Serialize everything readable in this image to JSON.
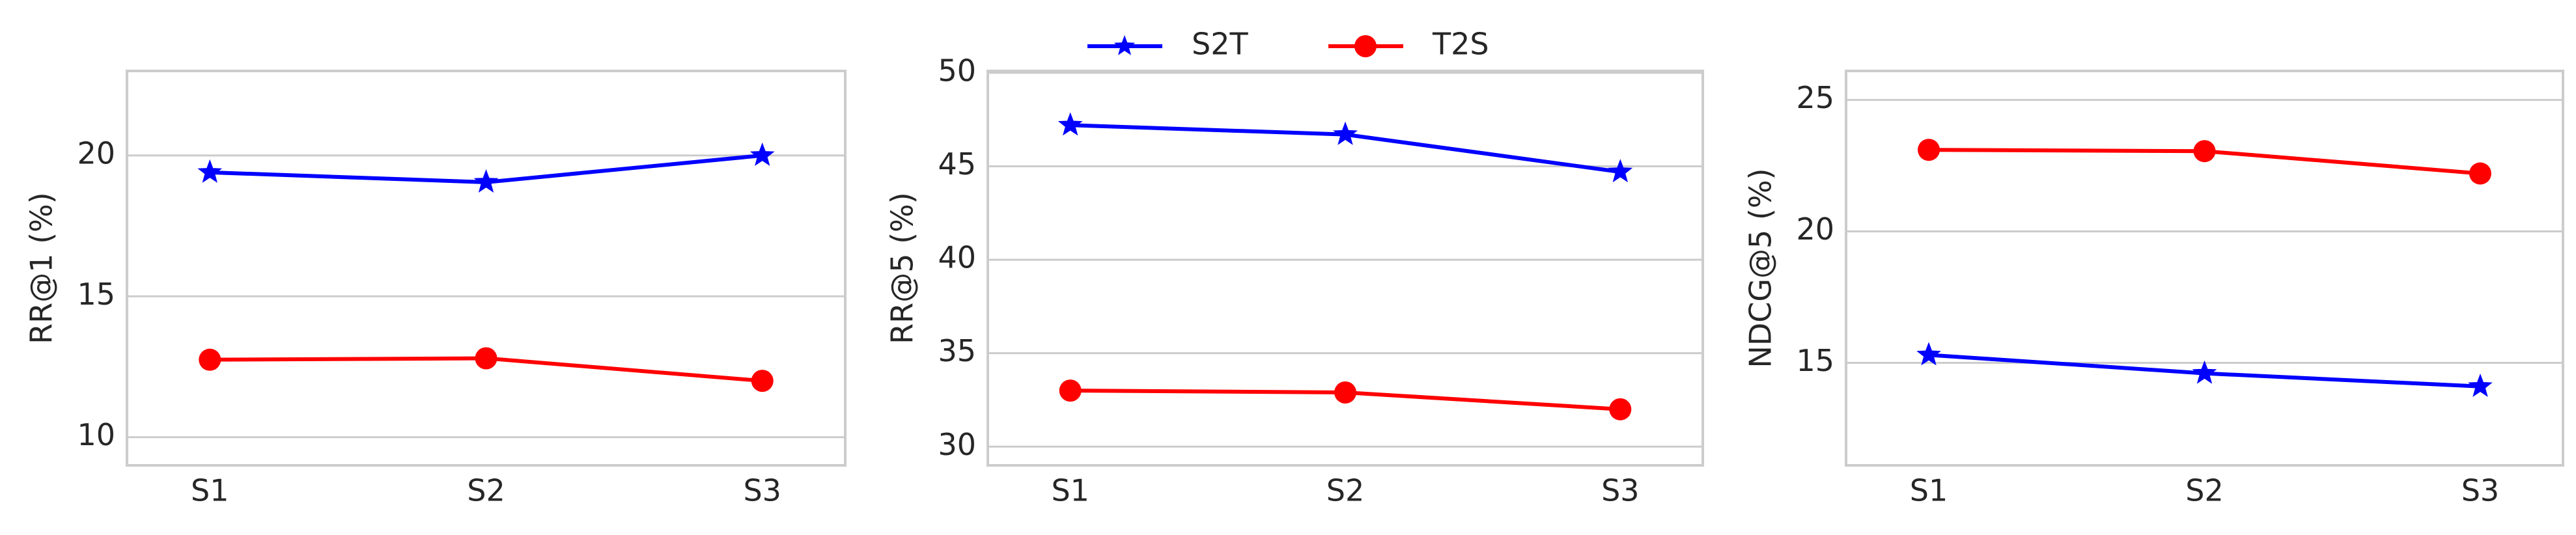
{
  "chart_data": [
    {
      "type": "line",
      "ylabel": "RR@1 (%)",
      "categories": [
        "S1",
        "S2",
        "S3"
      ],
      "series": [
        {
          "color": "#0000ff",
          "marker": "star",
          "values": [
            19.4,
            19.05,
            20.0
          ]
        },
        {
          "color": "#ff0000",
          "marker": "circle",
          "values": [
            12.75,
            12.8,
            12.0
          ]
        }
      ],
      "ylim": [
        9,
        23
      ],
      "yticks": [
        10,
        15,
        20
      ],
      "grid": true
    },
    {
      "type": "line",
      "ylabel": "RR@5 (%)",
      "categories": [
        "S1",
        "S2",
        "S3"
      ],
      "series": [
        {
          "name": "S2T",
          "color": "#0000ff",
          "marker": "star",
          "values": [
            47.2,
            46.7,
            44.7
          ]
        },
        {
          "name": "T2S",
          "color": "#ff0000",
          "marker": "circle",
          "values": [
            33.0,
            32.9,
            32.0
          ]
        }
      ],
      "ylim": [
        29,
        50.1
      ],
      "yticks": [
        30,
        35,
        40,
        45,
        50
      ],
      "grid": true,
      "legend": "top"
    },
    {
      "type": "line",
      "ylabel": "NDCG@5 (%)",
      "categories": [
        "S1",
        "S2",
        "S3"
      ],
      "series": [
        {
          "color": "#0000ff",
          "marker": "star",
          "values": [
            15.3,
            14.6,
            14.1
          ]
        },
        {
          "color": "#ff0000",
          "marker": "circle",
          "values": [
            23.1,
            23.05,
            22.2
          ]
        }
      ],
      "ylim": [
        11.1,
        26.1
      ],
      "yticks": [
        15,
        20,
        25
      ],
      "grid": true
    }
  ]
}
